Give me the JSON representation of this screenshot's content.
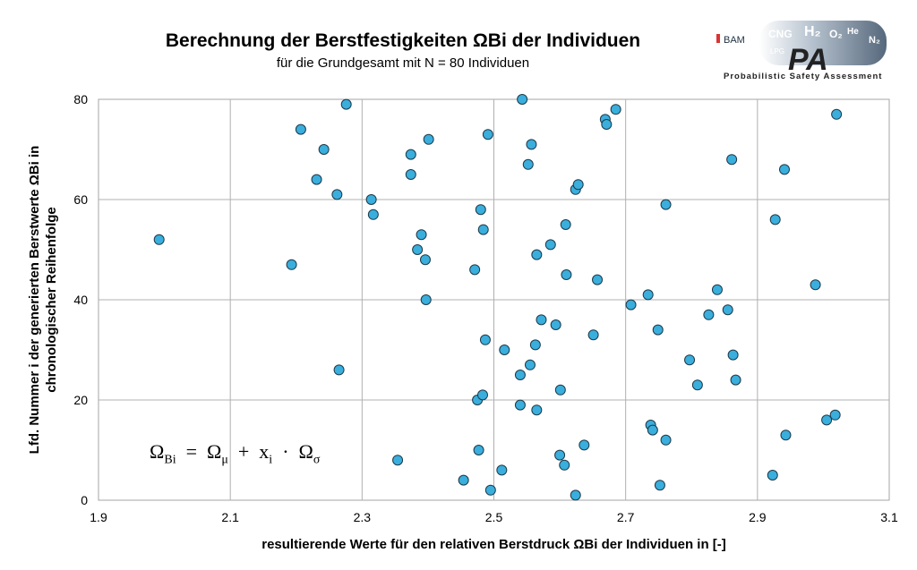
{
  "chart_data": {
    "type": "scatter",
    "title": "Berechnung der Berstfestigkeiten ΩBi der Individuen",
    "subtitle": "für die Grundgesamt mit N = 80 Individuen",
    "xlabel": "resultierende Werte für den relativen Berstdruck ΩBi der Individuen in [-]",
    "ylabel_line1": "Lfd. Nummer i der generierten Berstwerte ΩBi in",
    "ylabel_line2": "chronologischer Reihenfolge",
    "xlim": [
      1.9,
      3.1
    ],
    "ylim": [
      0,
      80
    ],
    "xticks": [
      "1.9",
      "2.1",
      "2.3",
      "2.5",
      "2.7",
      "2.9",
      "3.1"
    ],
    "yticks": [
      "0",
      "20",
      "40",
      "60",
      "80"
    ],
    "grid": true,
    "formula": "ΩBi = Ωμ + xi · Ωσ",
    "marker_color": "#3aaedc",
    "points": [
      [
        1.992,
        52
      ],
      [
        2.207,
        74
      ],
      [
        2.242,
        70
      ],
      [
        2.276,
        79
      ],
      [
        2.193,
        47
      ],
      [
        2.231,
        64
      ],
      [
        2.262,
        61
      ],
      [
        2.265,
        26
      ],
      [
        2.314,
        60
      ],
      [
        2.317,
        57
      ],
      [
        2.354,
        8
      ],
      [
        2.374,
        69
      ],
      [
        2.374,
        65
      ],
      [
        2.401,
        72
      ],
      [
        2.39,
        53
      ],
      [
        2.384,
        50
      ],
      [
        2.396,
        48
      ],
      [
        2.397,
        40
      ],
      [
        2.454,
        4
      ],
      [
        2.471,
        46
      ],
      [
        2.475,
        20
      ],
      [
        2.477,
        10
      ],
      [
        2.48,
        58
      ],
      [
        2.484,
        54
      ],
      [
        2.483,
        21
      ],
      [
        2.487,
        32
      ],
      [
        2.491,
        73
      ],
      [
        2.495,
        2
      ],
      [
        2.512,
        6
      ],
      [
        2.516,
        30
      ],
      [
        2.543,
        80
      ],
      [
        2.54,
        25
      ],
      [
        2.54,
        19
      ],
      [
        2.552,
        67
      ],
      [
        2.557,
        71
      ],
      [
        2.555,
        27
      ],
      [
        2.563,
        31
      ],
      [
        2.565,
        49
      ],
      [
        2.565,
        18
      ],
      [
        2.572,
        36
      ],
      [
        2.586,
        51
      ],
      [
        2.594,
        35
      ],
      [
        2.6,
        9
      ],
      [
        2.601,
        22
      ],
      [
        2.607,
        7
      ],
      [
        2.609,
        55
      ],
      [
        2.61,
        45
      ],
      [
        2.624,
        62
      ],
      [
        2.628,
        63
      ],
      [
        2.624,
        1
      ],
      [
        2.637,
        11
      ],
      [
        2.651,
        33
      ],
      [
        2.657,
        44
      ],
      [
        2.669,
        76
      ],
      [
        2.671,
        75
      ],
      [
        2.685,
        78
      ],
      [
        2.708,
        39
      ],
      [
        2.734,
        41
      ],
      [
        2.738,
        15
      ],
      [
        2.741,
        14
      ],
      [
        2.749,
        34
      ],
      [
        2.752,
        3
      ],
      [
        2.761,
        12
      ],
      [
        2.761,
        59
      ],
      [
        2.797,
        28
      ],
      [
        2.809,
        23
      ],
      [
        2.826,
        37
      ],
      [
        2.839,
        42
      ],
      [
        2.855,
        38
      ],
      [
        2.861,
        68
      ],
      [
        2.863,
        29
      ],
      [
        2.867,
        24
      ],
      [
        2.923,
        5
      ],
      [
        2.927,
        56
      ],
      [
        2.941,
        66
      ],
      [
        2.943,
        13
      ],
      [
        2.988,
        43
      ],
      [
        3.005,
        16
      ],
      [
        3.018,
        17
      ],
      [
        3.02,
        77
      ]
    ]
  },
  "logo": {
    "brand": "BAM",
    "gases": [
      "CNG",
      "LPG",
      "H2",
      "O2",
      "He",
      "N2"
    ],
    "mark": "PA",
    "tagline": "Probabilistic Safety Assessment"
  }
}
